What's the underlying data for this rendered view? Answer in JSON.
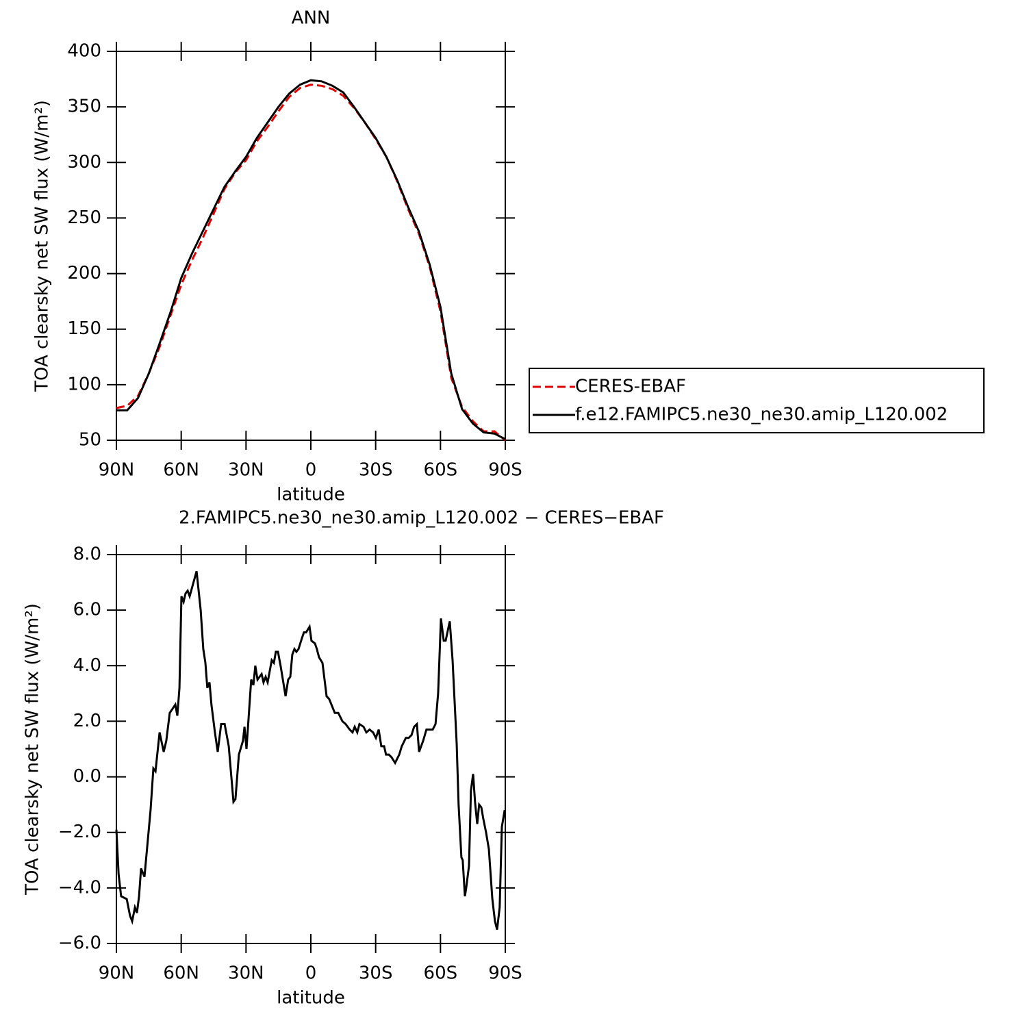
{
  "chart_data": [
    {
      "type": "line",
      "title": "ANN",
      "xlabel": "latitude",
      "ylabel": "TOA clearsky net SW flux (W/m²)",
      "x": [
        90,
        85,
        80,
        75,
        70,
        65,
        60,
        55,
        50,
        45,
        40,
        35,
        30,
        25,
        20,
        15,
        10,
        5,
        0,
        -5,
        -10,
        -15,
        -20,
        -25,
        -30,
        -35,
        -40,
        -45,
        -50,
        -55,
        -60,
        -65,
        -70,
        -75,
        -80,
        -85,
        -90
      ],
      "series": [
        {
          "name": "CERES-EBAF",
          "color": "#e00000",
          "linestyle": "dashed",
          "values": [
            79,
            81,
            90,
            110,
            134,
            162,
            190,
            212,
            232,
            254,
            276,
            291,
            302,
            319,
            332,
            346,
            359,
            367,
            370,
            369,
            366,
            360,
            349,
            336,
            321,
            305,
            283,
            258,
            236,
            206,
            166,
            106,
            80,
            67,
            58,
            58,
            50
          ]
        },
        {
          "name": "f.e12.FAMIPC5.ne30_ne30.amip_L120.002",
          "color": "#000000",
          "linestyle": "solid",
          "values": [
            77,
            77,
            88,
            110,
            137,
            165,
            196,
            218,
            238,
            258,
            278,
            292,
            305,
            322,
            336,
            350,
            362,
            370,
            374,
            373,
            369,
            363,
            350,
            336,
            322,
            305,
            284,
            260,
            238,
            208,
            170,
            110,
            78,
            65,
            57,
            56,
            51
          ]
        }
      ],
      "xlim": [
        90,
        -90
      ],
      "xticks": [
        {
          "value": 90,
          "label": "90N"
        },
        {
          "value": 60,
          "label": "60N"
        },
        {
          "value": 30,
          "label": "30N"
        },
        0,
        {
          "value": -30,
          "label": "30S"
        },
        {
          "value": -60,
          "label": "60S"
        },
        {
          "value": -90,
          "label": "90S"
        }
      ],
      "ylim": [
        50,
        400
      ],
      "yticks": [
        50,
        100,
        150,
        200,
        250,
        300,
        350,
        400
      ],
      "legend": "right"
    },
    {
      "type": "line",
      "title": "2.FAMIPC5.ne30_ne30.amip_L120.002 − CERES−EBAF",
      "xlabel": "latitude",
      "ylabel": "TOA clearsky net SW flux (W/m²)",
      "x": [
        90,
        89.0,
        87.8,
        85.2,
        83.7,
        82.7,
        81.4,
        80.5,
        79.5,
        78.6,
        77.0,
        74.2,
        72.9,
        71.9,
        70.0,
        68.1,
        66.9,
        65.3,
        62.7,
        61.8,
        60.8,
        59.9,
        58.9,
        58.0,
        57.0,
        56.1,
        52.9,
        51.0,
        49.8,
        48.8,
        47.9,
        46.9,
        46.0,
        44.4,
        43.1,
        41.5,
        39.9,
        38.0,
        35.8,
        34.9,
        33.3,
        31.4,
        30.7,
        29.8,
        27.6,
        26.6,
        25.7,
        24.7,
        22.8,
        21.9,
        20.9,
        20.0,
        18.1,
        17.1,
        16.2,
        15.2,
        14.0,
        11.7,
        10.5,
        9.5,
        8.6,
        7.6,
        6.7,
        5.7,
        4.1,
        3.2,
        2.2,
        0.6,
        -0.3,
        -1.9,
        -2.8,
        -3.8,
        -5.4,
        -7.3,
        -8.5,
        -11.1,
        -12.7,
        -14.6,
        -16.1,
        -18.0,
        -19.3,
        -20.3,
        -21.5,
        -22.5,
        -24.4,
        -25.7,
        -27.2,
        -28.8,
        -30.1,
        -31.4,
        -32.6,
        -33.9,
        -34.8,
        -36.1,
        -37.4,
        -39.0,
        -40.9,
        -42.1,
        -44.0,
        -45.3,
        -46.6,
        -47.8,
        -49.1,
        -50.1,
        -52.0,
        -53.5,
        -55.1,
        -56.4,
        -57.7,
        -58.9,
        -60.2,
        -61.5,
        -62.4,
        -64.3,
        -65.6,
        -67.5,
        -68.4,
        -69.7,
        -70.3,
        -71.3,
        -71.9,
        -73.2,
        -74.1,
        -75.1,
        -76.0,
        -77.0,
        -77.9,
        -78.9,
        -79.8,
        -81.1,
        -82.4,
        -84.0,
        -85.2,
        -86.2,
        -87.4,
        -88.4,
        -89.7
      ],
      "series": [
        {
          "color": "#000000",
          "linestyle": "solid",
          "values": [
            -1.9,
            -3.5,
            -4.3,
            -4.4,
            -5.0,
            -5.2,
            -4.7,
            -4.9,
            -4.3,
            -3.3,
            -3.6,
            -1.2,
            0.3,
            0.2,
            1.6,
            0.9,
            1.3,
            2.3,
            2.6,
            2.2,
            3.2,
            6.5,
            6.3,
            6.6,
            6.7,
            6.5,
            7.4,
            6.0,
            4.6,
            4.1,
            3.2,
            3.4,
            2.6,
            1.6,
            0.9,
            1.9,
            1.9,
            1.1,
            -0.9,
            -0.8,
            0.8,
            1.3,
            1.8,
            1.0,
            3.5,
            3.3,
            4.0,
            3.5,
            3.7,
            3.4,
            3.6,
            3.4,
            4.2,
            4.1,
            4.5,
            4.5,
            4.0,
            2.9,
            3.5,
            3.6,
            4.4,
            4.6,
            4.5,
            4.6,
            5.0,
            5.2,
            5.2,
            5.4,
            4.9,
            4.8,
            4.6,
            4.3,
            4.1,
            2.9,
            2.8,
            2.3,
            2.3,
            2.0,
            1.9,
            1.7,
            1.6,
            1.8,
            1.6,
            1.9,
            1.8,
            1.6,
            1.7,
            1.6,
            1.4,
            1.7,
            1.1,
            1.1,
            0.8,
            0.8,
            0.7,
            0.5,
            0.8,
            1.1,
            1.4,
            1.4,
            1.5,
            1.8,
            1.9,
            0.9,
            1.3,
            1.7,
            1.7,
            1.7,
            1.9,
            3.0,
            5.7,
            4.9,
            4.9,
            5.6,
            4.2,
            1.2,
            -1.0,
            -2.9,
            -3.0,
            -4.3,
            -4.0,
            -3.2,
            -0.5,
            0.1,
            -0.9,
            -1.7,
            -1.0,
            -1.1,
            -1.5,
            -2.0,
            -2.6,
            -4.4,
            -5.2,
            -5.5,
            -4.7,
            -1.8,
            -1.2
          ]
        }
      ],
      "xlim": [
        90,
        -90
      ],
      "xticks": [
        {
          "value": 90,
          "label": "90N"
        },
        {
          "value": 60,
          "label": "60N"
        },
        {
          "value": 30,
          "label": "30N"
        },
        0,
        {
          "value": -30,
          "label": "30S"
        },
        {
          "value": -60,
          "label": "60S"
        },
        {
          "value": -90,
          "label": "90S"
        }
      ],
      "ylim": [
        -6,
        8
      ],
      "yticks": [
        {
          "value": -6,
          "label": "−6.0"
        },
        {
          "value": -4,
          "label": "−4.0"
        },
        {
          "value": -2,
          "label": "−2.0"
        },
        {
          "value": 0,
          "label": "0.0"
        },
        {
          "value": 2,
          "label": "2.0"
        },
        {
          "value": 4,
          "label": "4.0"
        },
        {
          "value": 6,
          "label": "6.0"
        },
        {
          "value": 8,
          "label": "8.0"
        }
      ]
    }
  ]
}
